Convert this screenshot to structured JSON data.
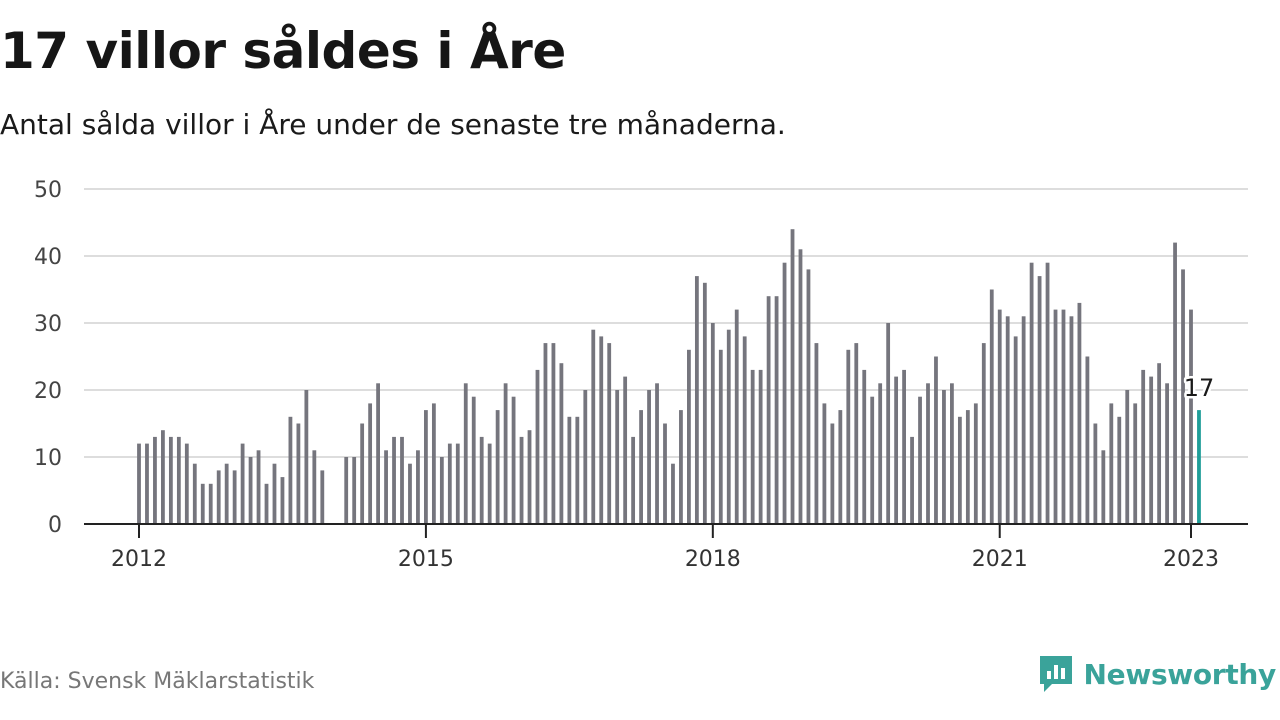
{
  "header": {
    "title": "17 villor såldes i Åre",
    "subtitle": "Antal sålda villor i Åre under de senaste tre månaderna."
  },
  "footer": {
    "source": "Källa: Svensk Mäklarstatistik",
    "brand": "Newsworthy",
    "brand_icon": "newsworthy-logo-icon"
  },
  "colors": {
    "bar": "#75757d",
    "highlight": "#1f9e99",
    "grid": "#dddddd",
    "axis": "#222222",
    "brand": "#3aa39a"
  },
  "chart_data": {
    "type": "bar",
    "x_start": "2012-01",
    "x_end": "2023-01",
    "x_ticks": [
      "2012",
      "2015",
      "2018",
      "2021",
      "2023"
    ],
    "y_ticks": [
      0,
      10,
      20,
      30,
      40,
      50
    ],
    "ylim": [
      0,
      50
    ],
    "grid": true,
    "values": [
      12,
      12,
      13,
      14,
      13,
      13,
      12,
      9,
      6,
      6,
      8,
      9,
      8,
      12,
      10,
      11,
      6,
      9,
      7,
      16,
      15,
      20,
      11,
      8,
      null,
      null,
      10,
      10,
      15,
      18,
      21,
      11,
      13,
      13,
      9,
      11,
      17,
      18,
      10,
      12,
      12,
      21,
      19,
      13,
      12,
      17,
      21,
      19,
      13,
      14,
      23,
      27,
      27,
      24,
      16,
      16,
      20,
      29,
      28,
      27,
      20,
      22,
      13,
      17,
      20,
      21,
      15,
      9,
      17,
      26,
      37,
      36,
      30,
      26,
      29,
      32,
      28,
      23,
      23,
      34,
      34,
      39,
      44,
      41,
      38,
      27,
      18,
      15,
      17,
      26,
      27,
      23,
      19,
      21,
      30,
      22,
      23,
      13,
      19,
      21,
      25,
      20,
      21,
      16,
      17,
      18,
      27,
      35,
      32,
      31,
      28,
      31,
      39,
      37,
      39,
      32,
      32,
      31,
      33,
      25,
      15,
      11,
      18,
      16,
      20,
      18,
      23,
      22,
      24,
      21,
      42,
      38,
      32,
      17
    ],
    "highlight_label": "17"
  }
}
